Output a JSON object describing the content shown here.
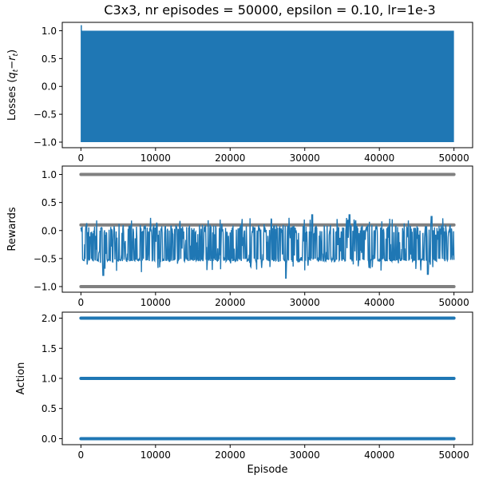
{
  "chart_data": [
    {
      "type": "line",
      "title": "C3x3, nr episodes = 50000, epsilon = 0.10, lr=1e-3",
      "xlabel": "",
      "ylabel_main": "Losses (",
      "ylabel_math": "q",
      "ylabel_sub1": "t",
      "ylabel_minus": "−",
      "ylabel_math2": "r",
      "ylabel_sub2": "t",
      "ylabel_close": ")",
      "xlim": [
        -2500,
        52500
      ],
      "ylim": [
        -1.1,
        1.15
      ],
      "xticks": [
        0,
        10000,
        20000,
        30000,
        40000,
        50000
      ],
      "yticks": [
        -1.0,
        -0.5,
        0.0,
        0.5,
        1.0
      ],
      "grid": false,
      "series": [
        {
          "color": "#1f77b4",
          "description": "dense oscillation between -1 and 1 over all episodes",
          "x_range": [
            0,
            50000
          ],
          "band": [
            -1.0,
            1.0
          ],
          "peak": {
            "x": 0,
            "y": 1.1
          }
        }
      ]
    },
    {
      "type": "line",
      "title": "",
      "xlabel": "",
      "ylabel": "Rewards",
      "xlim": [
        -2500,
        52500
      ],
      "ylim": [
        -1.1,
        1.15
      ],
      "xticks": [
        0,
        10000,
        20000,
        30000,
        40000,
        50000
      ],
      "yticks": [
        -1.0,
        -0.5,
        0.0,
        0.5,
        1.0
      ],
      "grid": false,
      "series": [
        {
          "kind": "scatter",
          "color": "#808080",
          "levels": [
            1.0,
            0.1,
            -1.0
          ],
          "x_range": [
            0,
            50000
          ]
        },
        {
          "kind": "line",
          "color": "#1f77b4",
          "x_range": [
            0,
            50000
          ],
          "band": [
            -0.55,
            0.1
          ],
          "min_dips": [
            {
              "x": 3000,
              "y": -0.8
            },
            {
              "x": 27500,
              "y": -0.85
            },
            {
              "x": 46500,
              "y": -0.78
            }
          ],
          "max_peaks": [
            {
              "x": 31000,
              "y": 0.28
            },
            {
              "x": 36000,
              "y": 0.28
            },
            {
              "x": 47000,
              "y": 0.25
            }
          ]
        }
      ]
    },
    {
      "type": "scatter",
      "title": "",
      "xlabel": "Episode",
      "ylabel": "Action",
      "xlim": [
        -2500,
        52500
      ],
      "ylim": [
        -0.1,
        2.1
      ],
      "xticks": [
        0,
        10000,
        20000,
        30000,
        40000,
        50000
      ],
      "yticks": [
        0.0,
        0.5,
        1.0,
        1.5,
        2.0
      ],
      "grid": false,
      "series": [
        {
          "color": "#1f77b4",
          "levels": [
            0,
            1,
            2
          ],
          "x_range": [
            0,
            50000
          ]
        }
      ]
    }
  ],
  "tick_labels": {
    "x": [
      "0",
      "10000",
      "20000",
      "30000",
      "40000",
      "50000"
    ],
    "y_losses": [
      "−1.0",
      "−0.5",
      "0.0",
      "0.5",
      "1.0"
    ],
    "y_rewards": [
      "−1.0",
      "−0.5",
      "0.0",
      "0.5",
      "1.0"
    ],
    "y_action": [
      "0.0",
      "0.5",
      "1.0",
      "1.5",
      "2.0"
    ]
  },
  "colors": {
    "primary": "#1f77b4",
    "secondary": "#808080",
    "axes": "#000000"
  }
}
